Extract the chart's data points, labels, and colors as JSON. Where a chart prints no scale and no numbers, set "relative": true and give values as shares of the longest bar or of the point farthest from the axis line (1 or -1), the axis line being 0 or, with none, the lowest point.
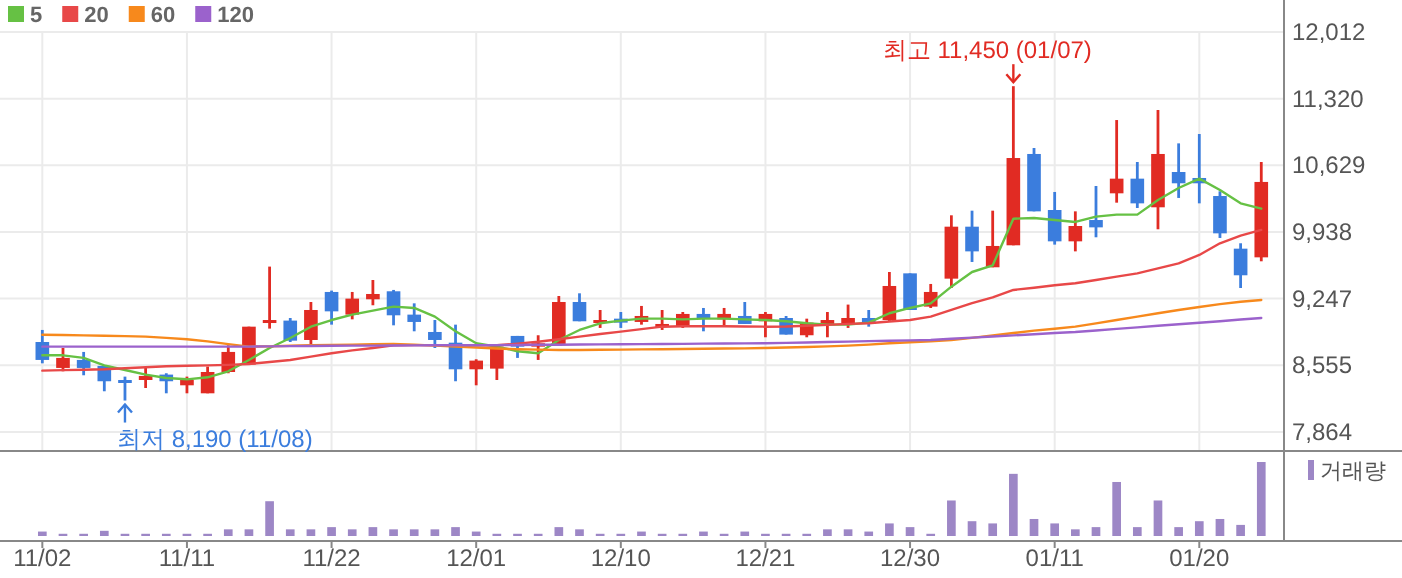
{
  "chart_data": [
    {
      "type": "candlestick",
      "ohlc": [
        [
          8797,
          8922,
          8576,
          8611
        ],
        [
          8528,
          8735,
          8493,
          8632
        ],
        [
          8611,
          8694,
          8452,
          8528
        ],
        [
          8549,
          8549,
          8286,
          8390
        ],
        [
          8403,
          8438,
          8190,
          8376
        ],
        [
          8403,
          8528,
          8320,
          8445
        ],
        [
          8459,
          8473,
          8265,
          8390
        ],
        [
          8348,
          8438,
          8265,
          8403
        ],
        [
          8265,
          8542,
          8265,
          8486
        ],
        [
          8486,
          8763,
          8473,
          8694
        ],
        [
          8562,
          8956,
          8562,
          8956
        ],
        [
          9012,
          9579,
          8936,
          9025
        ],
        [
          9019,
          9046,
          8797,
          8811
        ],
        [
          8818,
          9212,
          8763,
          9129
        ],
        [
          9316,
          9330,
          8977,
          9115
        ],
        [
          9081,
          9316,
          9032,
          9247
        ],
        [
          9240,
          9440,
          9178,
          9295
        ],
        [
          9323,
          9337,
          8970,
          9074
        ],
        [
          9081,
          9198,
          8908,
          9005
        ],
        [
          8901,
          9025,
          8735,
          8818
        ],
        [
          8790,
          8977,
          8390,
          8514
        ],
        [
          8514,
          8618,
          8348,
          8604
        ],
        [
          8521,
          8763,
          8403,
          8749
        ],
        [
          8860,
          8860,
          8632,
          8749
        ],
        [
          8749,
          8867,
          8611,
          8784
        ],
        [
          8777,
          9274,
          8763,
          9212
        ],
        [
          9212,
          9302,
          9012,
          9012
        ],
        [
          9012,
          9129,
          8943,
          9025
        ],
        [
          9039,
          9108,
          8943,
          8998
        ],
        [
          9005,
          9171,
          8977,
          9067
        ],
        [
          8956,
          9129,
          8922,
          8984
        ],
        [
          8956,
          9108,
          8943,
          9088
        ],
        [
          9088,
          9150,
          8908,
          9046
        ],
        [
          9032,
          9150,
          8970,
          9088
        ],
        [
          9067,
          9212,
          8984,
          8984
        ],
        [
          9012,
          9108,
          8846,
          9088
        ],
        [
          9046,
          9067,
          8874,
          8874
        ],
        [
          8867,
          9039,
          8846,
          8998
        ],
        [
          8984,
          9108,
          8846,
          9025
        ],
        [
          8984,
          9185,
          8943,
          9046
        ],
        [
          9046,
          9129,
          8956,
          8984
        ],
        [
          9025,
          9523,
          9005,
          9378
        ],
        [
          9509,
          9509,
          9129,
          9129
        ],
        [
          9164,
          9399,
          9150,
          9316
        ],
        [
          9454,
          10111,
          9357,
          9993
        ],
        [
          9993,
          10159,
          9627,
          9737
        ],
        [
          9572,
          10159,
          9572,
          9793
        ],
        [
          9800,
          11450,
          9800,
          10705
        ],
        [
          10747,
          10809,
          10152,
          10152
        ],
        [
          10166,
          10353,
          9807,
          9841
        ],
        [
          9841,
          10152,
          9737,
          10000
        ],
        [
          10062,
          10415,
          9883,
          9986
        ],
        [
          10339,
          11099,
          10242,
          10491
        ],
        [
          10491,
          10664,
          10187,
          10235
        ],
        [
          10194,
          11203,
          9966,
          10747
        ],
        [
          10560,
          10857,
          10291,
          10443
        ],
        [
          10498,
          10954,
          10235,
          10443
        ],
        [
          10311,
          10360,
          9876,
          9924
        ],
        [
          9765,
          9821,
          9357,
          9489
        ],
        [
          9675,
          10664,
          9634,
          10457
        ]
      ],
      "colors": [
        "#3b7ddd",
        "#e12b23",
        "#3b7ddd",
        "#3b7ddd",
        "#3b7ddd",
        "#e12b23",
        "#3b7ddd",
        "#e12b23",
        "#e12b23",
        "#e12b23",
        "#e12b23",
        "#e12b23",
        "#3b7ddd",
        "#e12b23",
        "#3b7ddd",
        "#e12b23",
        "#e12b23",
        "#3b7ddd",
        "#3b7ddd",
        "#3b7ddd",
        "#3b7ddd",
        "#e12b23",
        "#e12b23",
        "#3b7ddd",
        "#e12b23",
        "#e12b23",
        "#3b7ddd",
        "#e12b23",
        "#3b7ddd",
        "#e12b23",
        "#e12b23",
        "#e12b23",
        "#3b7ddd",
        "#e12b23",
        "#3b7ddd",
        "#e12b23",
        "#3b7ddd",
        "#e12b23",
        "#e12b23",
        "#e12b23",
        "#3b7ddd",
        "#e12b23",
        "#3b7ddd",
        "#e12b23",
        "#e12b23",
        "#3b7ddd",
        "#e12b23",
        "#e12b23",
        "#3b7ddd",
        "#3b7ddd",
        "#e12b23",
        "#3b7ddd",
        "#e12b23",
        "#3b7ddd",
        "#e12b23",
        "#3b7ddd",
        "#3b7ddd",
        "#3b7ddd",
        "#3b7ddd",
        "#e12b23"
      ],
      "series": [
        {
          "name": "5",
          "type": "line",
          "color": "#66c144",
          "values": [
            8659,
            8659,
            8632,
            8555,
            8507,
            8459,
            8424,
            8410,
            8431,
            8493,
            8611,
            8735,
            8839,
            8956,
            9025,
            9081,
            9122,
            9164,
            9150,
            9060,
            8908,
            8784,
            8749,
            8701,
            8680,
            8818,
            8922,
            8991,
            9019,
            9039,
            9039,
            9032,
            9039,
            9039,
            9032,
            9025,
            9012,
            8991,
            8977,
            8977,
            8998,
            9095,
            9150,
            9198,
            9371,
            9523,
            9592,
            10076,
            10083,
            10062,
            10042,
            10097,
            10118,
            10118,
            10270,
            10394,
            10491,
            10373,
            10235,
            10180
          ]
        },
        {
          "name": "20",
          "type": "line",
          "color": "#e84848",
          "values": [
            8500,
            8505,
            8510,
            8515,
            8525,
            8535,
            8545,
            8550,
            8555,
            8560,
            8569,
            8590,
            8610,
            8646,
            8680,
            8710,
            8735,
            8763,
            8765,
            8765,
            8763,
            8763,
            8763,
            8780,
            8800,
            8825,
            8853,
            8880,
            8905,
            8930,
            8956,
            8960,
            8960,
            8960,
            8958,
            8956,
            8958,
            8965,
            8975,
            8985,
            8991,
            9010,
            9025,
            9060,
            9130,
            9200,
            9260,
            9337,
            9360,
            9385,
            9406,
            9440,
            9475,
            9509,
            9560,
            9613,
            9700,
            9821,
            9900,
            9959
          ]
        },
        {
          "name": "60",
          "type": "line",
          "color": "#f7891c",
          "values": [
            8873,
            8870,
            8866,
            8862,
            8858,
            8853,
            8840,
            8825,
            8804,
            8775,
            8749,
            8752,
            8758,
            8763,
            8766,
            8770,
            8773,
            8777,
            8770,
            8760,
            8749,
            8740,
            8730,
            8722,
            8718,
            8714,
            8714,
            8716,
            8718,
            8720,
            8722,
            8725,
            8727,
            8729,
            8731,
            8735,
            8740,
            8745,
            8752,
            8760,
            8770,
            8784,
            8795,
            8804,
            8818,
            8840,
            8865,
            8890,
            8915,
            8935,
            8956,
            8990,
            9025,
            9060,
            9095,
            9129,
            9160,
            9190,
            9215,
            9233
          ]
        },
        {
          "name": "120",
          "type": "line",
          "color": "#9b62cc",
          "values": [
            8749,
            8749,
            8749,
            8749,
            8749,
            8749,
            8749,
            8749,
            8749,
            8749,
            8749,
            8752,
            8754,
            8756,
            8758,
            8759,
            8760,
            8761,
            8762,
            8763,
            8763,
            8763,
            8765,
            8766,
            8768,
            8769,
            8771,
            8772,
            8774,
            8775,
            8777,
            8778,
            8780,
            8781,
            8783,
            8784,
            8788,
            8792,
            8797,
            8801,
            8806,
            8810,
            8814,
            8818,
            8830,
            8842,
            8854,
            8866,
            8878,
            8890,
            8901,
            8917,
            8933,
            8949,
            8965,
            8981,
            8997,
            9013,
            9030,
            9046
          ]
        }
      ],
      "ylim": [
        7677,
        12012
      ],
      "yticks": [
        {
          "value": 7864,
          "label": "7,864"
        },
        {
          "value": 8555,
          "label": "8,555"
        },
        {
          "value": 9247,
          "label": "9,247"
        },
        {
          "value": 9938,
          "label": "9,938"
        },
        {
          "value": 10629,
          "label": "10,629"
        },
        {
          "value": 11320,
          "label": "11,320"
        },
        {
          "value": 12012,
          "label": "12,012"
        }
      ],
      "grid": true,
      "legend": "top left",
      "tick_labels": "y",
      "annotations": [
        "최저 8,190 (11/08)",
        "최고 11,450 (01/07)"
      ]
    },
    {
      "type": "bar",
      "relative": true,
      "categories": [
        "11/02",
        null,
        null,
        null,
        null,
        null,
        null,
        "11/11",
        null,
        null,
        null,
        null,
        null,
        null,
        "11/22",
        null,
        null,
        null,
        null,
        null,
        null,
        "12/01",
        null,
        null,
        null,
        null,
        null,
        null,
        "12/10",
        null,
        null,
        null,
        null,
        null,
        null,
        "12/21",
        null,
        null,
        null,
        null,
        null,
        null,
        "12/30",
        null,
        null,
        null,
        null,
        null,
        null,
        "01/11",
        null,
        null,
        null,
        null,
        null,
        null,
        "01/20",
        null,
        null,
        null
      ],
      "series": [
        {
          "name": "거래량",
          "color": "#9d87c6",
          "values": [
            0.06,
            0.03,
            0.03,
            0.07,
            0.03,
            0.03,
            0.03,
            0.03,
            0.03,
            0.09,
            0.09,
            0.47,
            0.09,
            0.09,
            0.12,
            0.09,
            0.12,
            0.09,
            0.09,
            0.09,
            0.12,
            0.06,
            0.03,
            0.03,
            0.03,
            0.12,
            0.09,
            0.03,
            0.03,
            0.06,
            0.03,
            0.03,
            0.06,
            0.03,
            0.06,
            0.03,
            0.03,
            0.03,
            0.09,
            0.09,
            0.06,
            0.17,
            0.12,
            0.03,
            0.48,
            0.2,
            0.17,
            0.84,
            0.23,
            0.17,
            0.09,
            0.12,
            0.73,
            0.12,
            0.48,
            0.12,
            0.2,
            0.23,
            0.15,
            1
          ]
        }
      ],
      "legend": "right",
      "tick_labels": "x"
    }
  ]
}
